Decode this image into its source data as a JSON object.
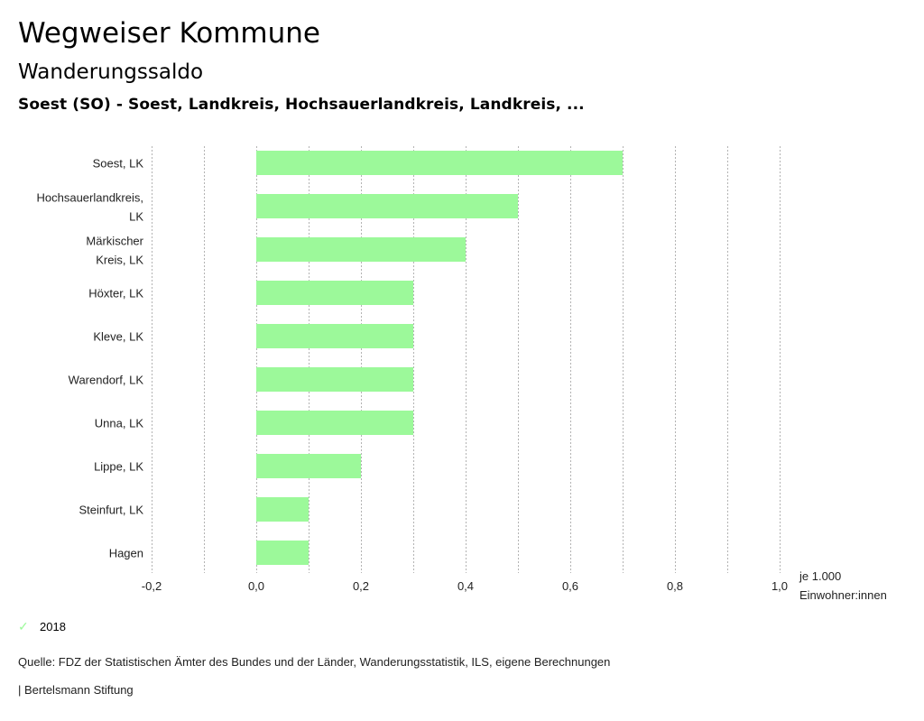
{
  "header": {
    "title": "Wegweiser Kommune",
    "subtitle": "Wanderungssaldo",
    "region": "Soest (SO) - Soest, Landkreis, Hochsauerlandkreis, Landkreis, ..."
  },
  "chart_data": {
    "type": "bar",
    "orientation": "horizontal",
    "categories": [
      [
        "Soest, LK"
      ],
      [
        "Hochsauerlandkreis,",
        "LK"
      ],
      [
        "Märkischer",
        "Kreis, LK"
      ],
      [
        "Höxter, LK"
      ],
      [
        "Kleve, LK"
      ],
      [
        "Warendorf, LK"
      ],
      [
        "Unna, LK"
      ],
      [
        "Lippe, LK"
      ],
      [
        "Steinfurt, LK"
      ],
      [
        "Hagen"
      ]
    ],
    "series": [
      {
        "name": "2018",
        "color": "#9cf99a",
        "values": [
          0.7,
          0.5,
          0.4,
          0.3,
          0.3,
          0.3,
          0.3,
          0.2,
          0.1,
          0.1
        ]
      }
    ],
    "xlim": [
      -0.2,
      1.0
    ],
    "xticks": [
      -0.2,
      0.0,
      0.2,
      0.4,
      0.6,
      0.8,
      1.0
    ],
    "xtick_labels": [
      "-0,2",
      "0,0",
      "0,2",
      "0,4",
      "0,6",
      "0,8",
      "1,0"
    ],
    "gridlines_every": 0.1,
    "grid": true,
    "xlabel": [
      "je 1.000",
      "Einwohner:innen"
    ],
    "legend_position": "bottom-left"
  },
  "legend": {
    "label": "2018",
    "icon": "check-icon",
    "color": "#9cf99a"
  },
  "footer": {
    "source": "Quelle: FDZ der Statistischen Ämter des Bundes und der Länder, Wanderungsstatistik, ILS, eigene Berechnungen",
    "brand": "| Bertelsmann Stiftung"
  }
}
